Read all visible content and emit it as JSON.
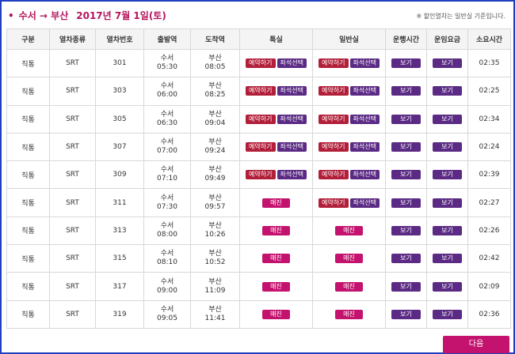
{
  "header": {
    "bullet": "•",
    "route": "수서 → 부산",
    "date": "2017년 7월 1일(토)",
    "note": "※ 할인열차는 일반실 기준입니다."
  },
  "columns": [
    "구분",
    "열차종류",
    "열차번호",
    "출발역",
    "도착역",
    "특실",
    "일반실",
    "운행시간",
    "운임요금",
    "소요시간"
  ],
  "labels": {
    "reserve": "예약하기",
    "seat_select": "좌석선택",
    "view": "보기",
    "sold_out": "매진"
  },
  "rows": [
    {
      "category": "직통",
      "type": "SRT",
      "number": "301",
      "dep_station": "수서",
      "dep_time": "05:30",
      "arr_station": "부산",
      "arr_time": "08:05",
      "first_class": "available",
      "standard": "available",
      "duration": "02:35"
    },
    {
      "category": "직통",
      "type": "SRT",
      "number": "303",
      "dep_station": "수서",
      "dep_time": "06:00",
      "arr_station": "부산",
      "arr_time": "08:25",
      "first_class": "available",
      "standard": "available",
      "duration": "02:25"
    },
    {
      "category": "직통",
      "type": "SRT",
      "number": "305",
      "dep_station": "수서",
      "dep_time": "06:30",
      "arr_station": "부산",
      "arr_time": "09:04",
      "first_class": "available",
      "standard": "available",
      "duration": "02:34"
    },
    {
      "category": "직통",
      "type": "SRT",
      "number": "307",
      "dep_station": "수서",
      "dep_time": "07:00",
      "arr_station": "부산",
      "arr_time": "09:24",
      "first_class": "available",
      "standard": "available",
      "duration": "02:24"
    },
    {
      "category": "직통",
      "type": "SRT",
      "number": "309",
      "dep_station": "수서",
      "dep_time": "07:10",
      "arr_station": "부산",
      "arr_time": "09:49",
      "first_class": "available",
      "standard": "available",
      "duration": "02:39"
    },
    {
      "category": "직통",
      "type": "SRT",
      "number": "311",
      "dep_station": "수서",
      "dep_time": "07:30",
      "arr_station": "부산",
      "arr_time": "09:57",
      "first_class": "sold_out",
      "standard": "available",
      "duration": "02:27"
    },
    {
      "category": "직통",
      "type": "SRT",
      "number": "313",
      "dep_station": "수서",
      "dep_time": "08:00",
      "arr_station": "부산",
      "arr_time": "10:26",
      "first_class": "sold_out",
      "standard": "sold_out",
      "duration": "02:26"
    },
    {
      "category": "직통",
      "type": "SRT",
      "number": "315",
      "dep_station": "수서",
      "dep_time": "08:10",
      "arr_station": "부산",
      "arr_time": "10:52",
      "first_class": "sold_out",
      "standard": "sold_out",
      "duration": "02:42"
    },
    {
      "category": "직통",
      "type": "SRT",
      "number": "317",
      "dep_station": "수서",
      "dep_time": "09:00",
      "arr_station": "부산",
      "arr_time": "11:09",
      "first_class": "sold_out",
      "standard": "sold_out",
      "duration": "02:09"
    },
    {
      "category": "직통",
      "type": "SRT",
      "number": "319",
      "dep_station": "수서",
      "dep_time": "09:05",
      "arr_station": "부산",
      "arr_time": "11:41",
      "first_class": "sold_out",
      "standard": "sold_out",
      "duration": "02:36"
    }
  ],
  "footer": {
    "next_label": "다음"
  },
  "colors": {
    "accent": "#c4136e",
    "reserve": "#b21f3a",
    "seat": "#5b2a84",
    "frame": "#1f3fbf"
  }
}
